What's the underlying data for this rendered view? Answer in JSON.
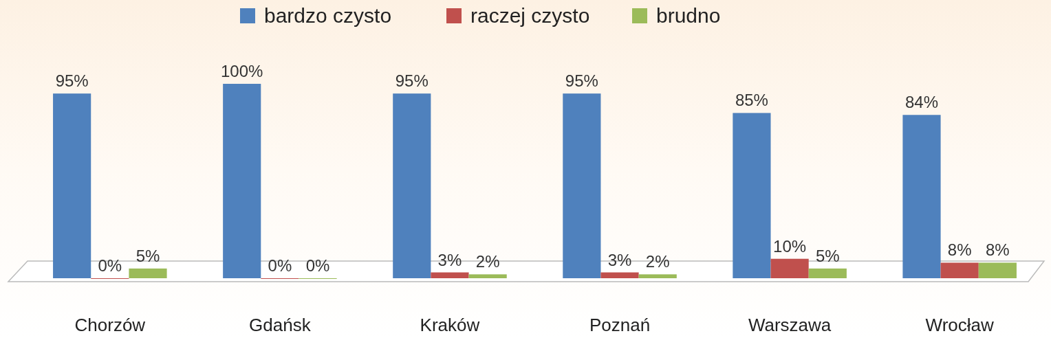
{
  "chart_data": {
    "type": "bar",
    "categories": [
      "Chorzów",
      "Gdańsk",
      "Kraków",
      "Poznań",
      "Warszawa",
      "Wrocław"
    ],
    "series": [
      {
        "name": "bardzo czysto",
        "color": "#4f81bd",
        "values": [
          95,
          100,
          95,
          95,
          85,
          84
        ],
        "value_labels": [
          "95%",
          "100%",
          "95%",
          "95%",
          "85%",
          "84%"
        ]
      },
      {
        "name": "raczej czysto",
        "color": "#c0504d",
        "values": [
          0,
          0,
          3,
          3,
          10,
          8
        ],
        "value_labels": [
          "0%",
          "0%",
          "3%",
          "3%",
          "10%",
          "8%"
        ]
      },
      {
        "name": "brudno",
        "color": "#9bbb59",
        "values": [
          5,
          0,
          2,
          2,
          5,
          8
        ],
        "value_labels": [
          "5%",
          "0%",
          "2%",
          "2%",
          "5%",
          "8%"
        ]
      }
    ],
    "ylim": [
      0,
      100
    ],
    "legend": "top"
  }
}
